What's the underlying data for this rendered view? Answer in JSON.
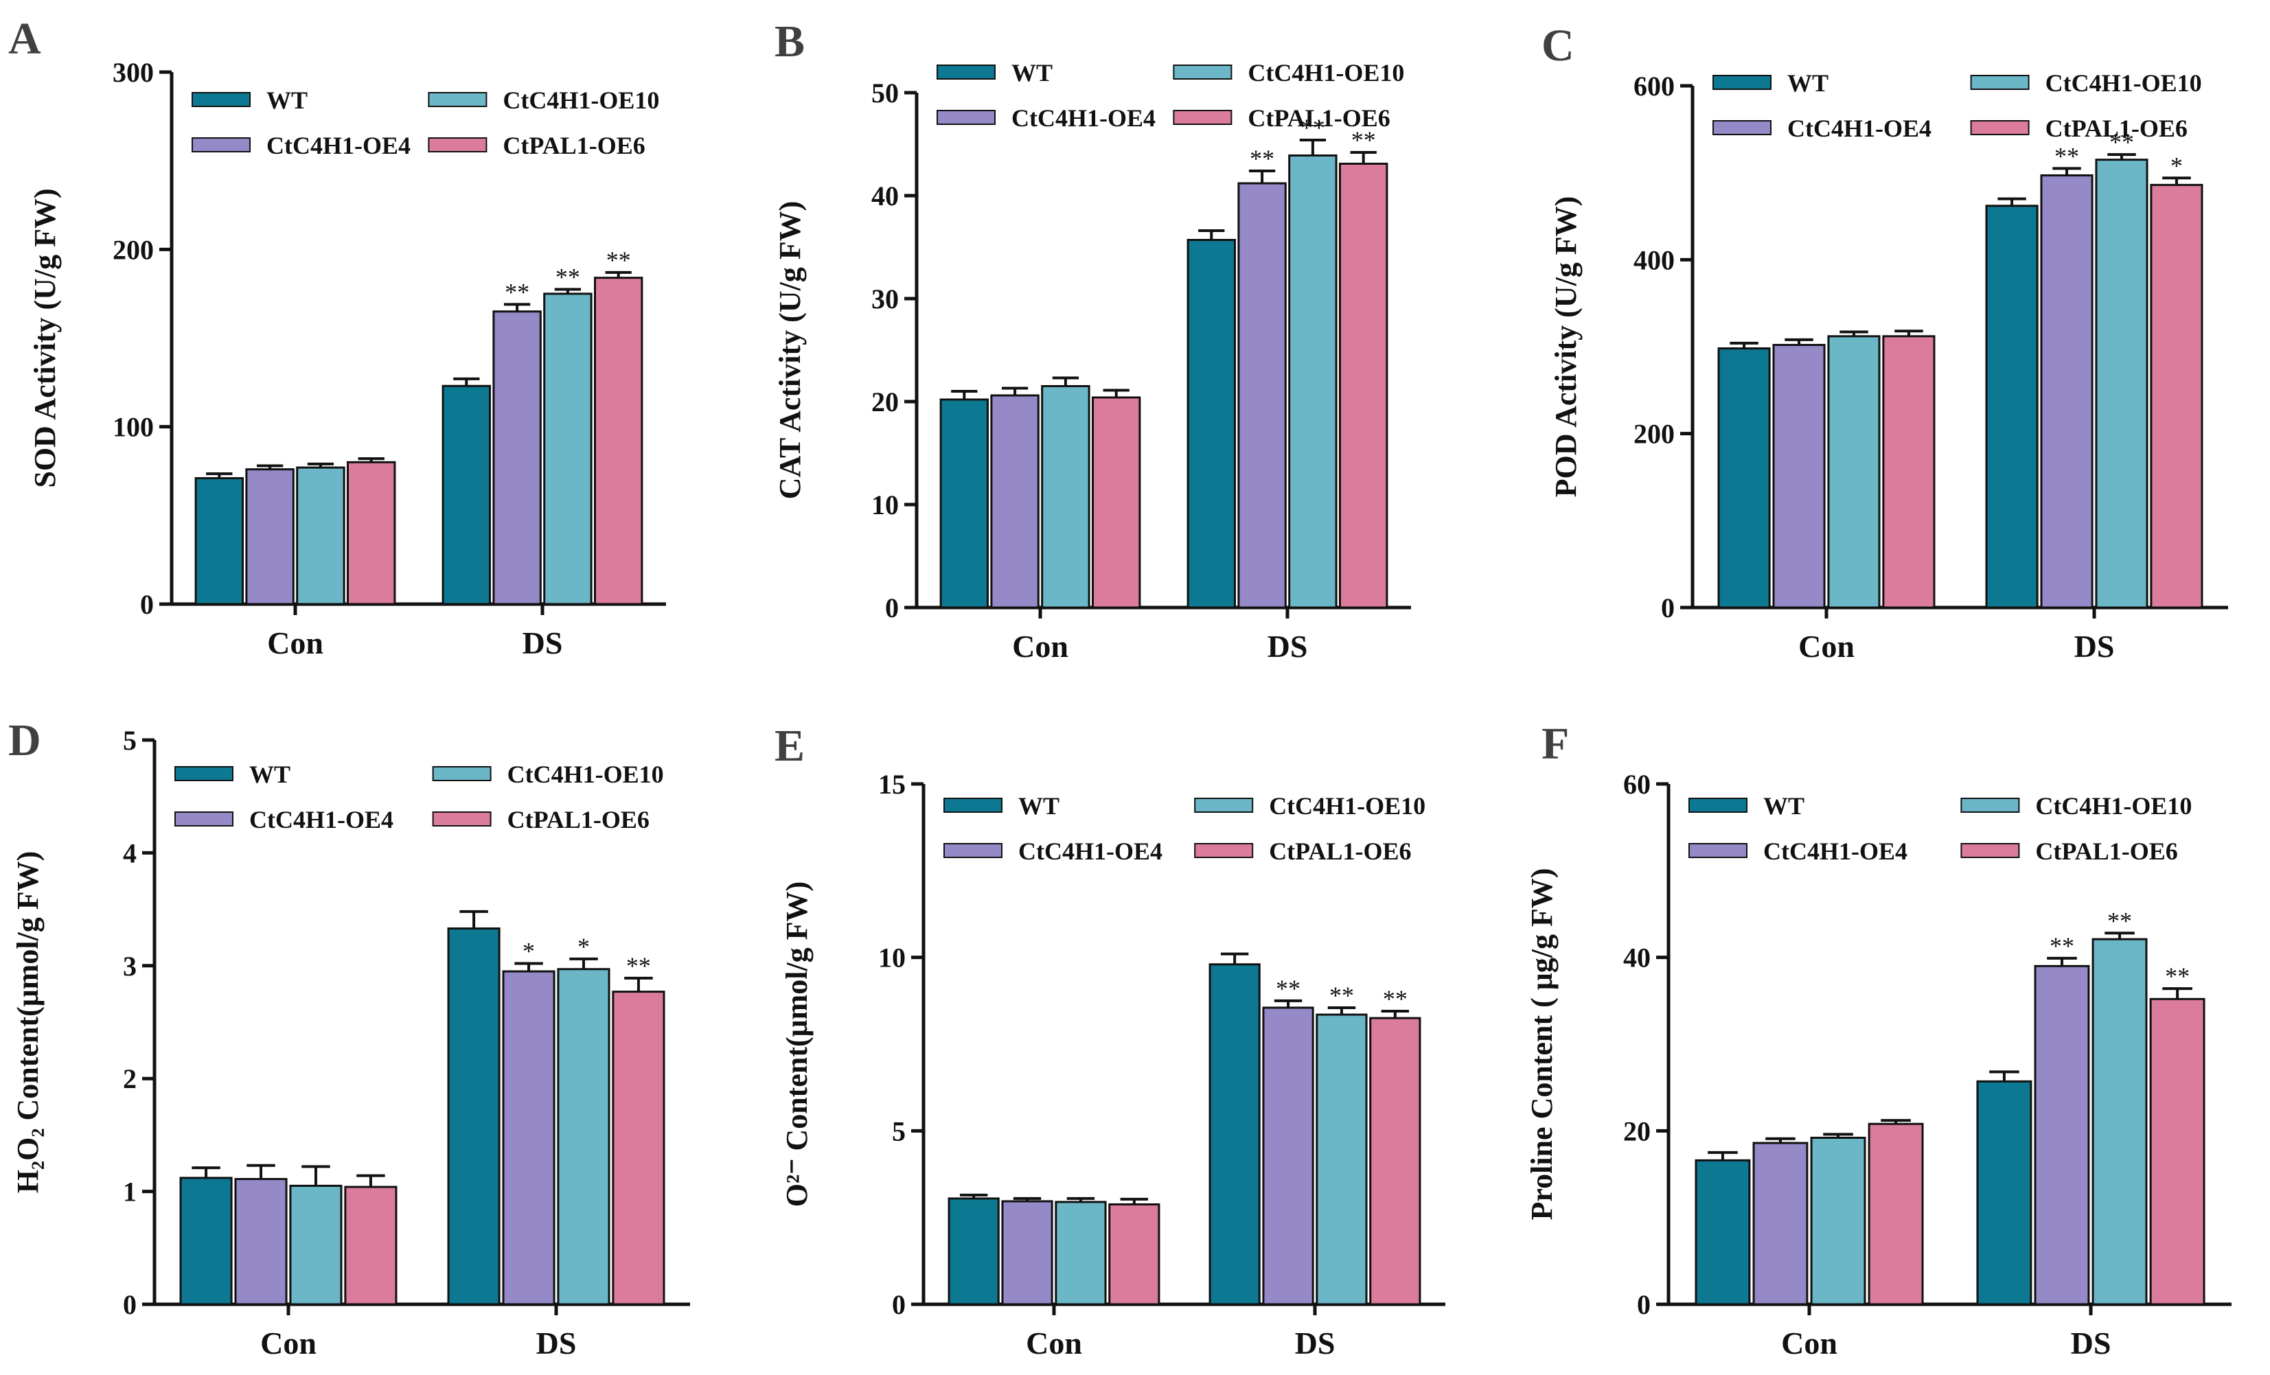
{
  "figure": {
    "series_colors": {
      "WT": "#0d7891",
      "CtC4H1-OE4": "#9589c8",
      "CtC4H1-OE10": "#6bb7c7",
      "CtPAL1-OE6": "#dc7c9c"
    }
  },
  "chart_data": [
    {
      "panel": "A",
      "type": "bar",
      "categories": [
        "Con",
        "DS"
      ],
      "ylabel": "SOD Activity (U/g FW)",
      "ylim": [
        0,
        300
      ],
      "yticks": [
        "0",
        "100",
        "200",
        "300"
      ],
      "legend": [
        "WT",
        "CtC4H1-OE4",
        "CtC4H1-OE10",
        "CtPAL1-OE6"
      ],
      "series": [
        {
          "name": "WT",
          "values": [
            71,
            123
          ],
          "errors": [
            2.5,
            4
          ],
          "sig": [
            "",
            ""
          ]
        },
        {
          "name": "CtC4H1-OE4",
          "values": [
            76,
            165
          ],
          "errors": [
            2,
            4
          ],
          "sig": [
            "",
            "**"
          ]
        },
        {
          "name": "CtC4H1-OE10",
          "values": [
            77,
            175
          ],
          "errors": [
            2,
            2.5
          ],
          "sig": [
            "",
            "**"
          ]
        },
        {
          "name": "CtPAL1-OE6",
          "values": [
            80,
            184
          ],
          "errors": [
            2,
            3
          ],
          "sig": [
            "",
            "**"
          ]
        }
      ]
    },
    {
      "panel": "B",
      "type": "bar",
      "categories": [
        "Con",
        "DS"
      ],
      "ylabel": "CAT Activity (U/g FW)",
      "ylim": [
        0,
        50
      ],
      "yticks": [
        "0",
        "10",
        "20",
        "30",
        "40",
        "50"
      ],
      "legend": [
        "WT",
        "CtC4H1-OE4",
        "CtC4H1-OE10",
        "CtPAL1-OE6"
      ],
      "series": [
        {
          "name": "WT",
          "values": [
            20.2,
            35.7
          ],
          "errors": [
            0.8,
            0.9
          ],
          "sig": [
            "",
            ""
          ]
        },
        {
          "name": "CtC4H1-OE4",
          "values": [
            20.6,
            41.2
          ],
          "errors": [
            0.7,
            1.2
          ],
          "sig": [
            "",
            "**"
          ]
        },
        {
          "name": "CtC4H1-OE10",
          "values": [
            21.5,
            43.9
          ],
          "errors": [
            0.8,
            1.5
          ],
          "sig": [
            "",
            "**"
          ]
        },
        {
          "name": "CtPAL1-OE6",
          "values": [
            20.4,
            43.1
          ],
          "errors": [
            0.7,
            1.1
          ],
          "sig": [
            "",
            "**"
          ]
        }
      ]
    },
    {
      "panel": "C",
      "type": "bar",
      "categories": [
        "Con",
        "DS"
      ],
      "ylabel": "POD Activity (U/g FW)",
      "ylim": [
        0,
        600
      ],
      "yticks": [
        "0",
        "200",
        "400",
        "600"
      ],
      "legend": [
        "WT",
        "CtC4H1-OE4",
        "CtC4H1-OE10",
        "CtPAL1-OE6"
      ],
      "series": [
        {
          "name": "WT",
          "values": [
            298,
            462
          ],
          "errors": [
            6,
            8
          ],
          "sig": [
            "",
            ""
          ]
        },
        {
          "name": "CtC4H1-OE4",
          "values": [
            302,
            497
          ],
          "errors": [
            6,
            8
          ],
          "sig": [
            "",
            "**"
          ]
        },
        {
          "name": "CtC4H1-OE10",
          "values": [
            312,
            515
          ],
          "errors": [
            5,
            6
          ],
          "sig": [
            "",
            "**"
          ]
        },
        {
          "name": "CtPAL1-OE6",
          "values": [
            312,
            486
          ],
          "errors": [
            6,
            8
          ],
          "sig": [
            "",
            "*"
          ]
        }
      ]
    },
    {
      "panel": "D",
      "type": "bar",
      "categories": [
        "Con",
        "DS"
      ],
      "ylabel": "H₂O₂ Content(μmol/g FW)",
      "ylim": [
        0,
        5
      ],
      "yticks": [
        "0",
        "1",
        "2",
        "3",
        "4",
        "5"
      ],
      "legend": [
        "WT",
        "CtC4H1-OE4",
        "CtC4H1-OE10",
        "CtPAL1-OE6"
      ],
      "series": [
        {
          "name": "WT",
          "values": [
            1.12,
            3.33
          ],
          "errors": [
            0.09,
            0.15
          ],
          "sig": [
            "",
            ""
          ]
        },
        {
          "name": "CtC4H1-OE4",
          "values": [
            1.11,
            2.95
          ],
          "errors": [
            0.12,
            0.07
          ],
          "sig": [
            "",
            "*"
          ]
        },
        {
          "name": "CtC4H1-OE10",
          "values": [
            1.05,
            2.97
          ],
          "errors": [
            0.17,
            0.09
          ],
          "sig": [
            "",
            "*"
          ]
        },
        {
          "name": "CtPAL1-OE6",
          "values": [
            1.04,
            2.77
          ],
          "errors": [
            0.1,
            0.12
          ],
          "sig": [
            "",
            "**"
          ]
        }
      ]
    },
    {
      "panel": "E",
      "type": "bar",
      "categories": [
        "Con",
        "DS"
      ],
      "ylabel": "O²⁻ Content(μmol/g FW)",
      "ylim": [
        0,
        15
      ],
      "yticks": [
        "0",
        "5",
        "10",
        "15"
      ],
      "legend": [
        "WT",
        "CtC4H1-OE4",
        "CtC4H1-OE10",
        "CtPAL1-OE6"
      ],
      "series": [
        {
          "name": "WT",
          "values": [
            3.05,
            9.8
          ],
          "errors": [
            0.1,
            0.3
          ],
          "sig": [
            "",
            ""
          ]
        },
        {
          "name": "CtC4H1-OE4",
          "values": [
            2.97,
            8.55
          ],
          "errors": [
            0.08,
            0.2
          ],
          "sig": [
            "",
            "**"
          ]
        },
        {
          "name": "CtC4H1-OE10",
          "values": [
            2.95,
            8.35
          ],
          "errors": [
            0.1,
            0.2
          ],
          "sig": [
            "",
            "**"
          ]
        },
        {
          "name": "CtPAL1-OE6",
          "values": [
            2.88,
            8.25
          ],
          "errors": [
            0.15,
            0.2
          ],
          "sig": [
            "",
            "**"
          ]
        }
      ]
    },
    {
      "panel": "F",
      "type": "bar",
      "categories": [
        "Con",
        "DS"
      ],
      "ylabel": "Proline Content ( μg/g FW)",
      "ylim": [
        0,
        60
      ],
      "yticks": [
        "0",
        "20",
        "40",
        "60"
      ],
      "legend": [
        "WT",
        "CtC4H1-OE4",
        "CtC4H1-OE10",
        "CtPAL1-OE6"
      ],
      "series": [
        {
          "name": "WT",
          "values": [
            16.6,
            25.7
          ],
          "errors": [
            0.9,
            1.1
          ],
          "sig": [
            "",
            ""
          ]
        },
        {
          "name": "CtC4H1-OE4",
          "values": [
            18.6,
            39.0
          ],
          "errors": [
            0.5,
            0.9
          ],
          "sig": [
            "",
            "**"
          ]
        },
        {
          "name": "CtC4H1-OE10",
          "values": [
            19.2,
            42.1
          ],
          "errors": [
            0.4,
            0.7
          ],
          "sig": [
            "",
            "**"
          ]
        },
        {
          "name": "CtPAL1-OE6",
          "values": [
            20.8,
            35.2
          ],
          "errors": [
            0.4,
            1.2
          ],
          "sig": [
            "",
            "**"
          ]
        }
      ]
    }
  ]
}
